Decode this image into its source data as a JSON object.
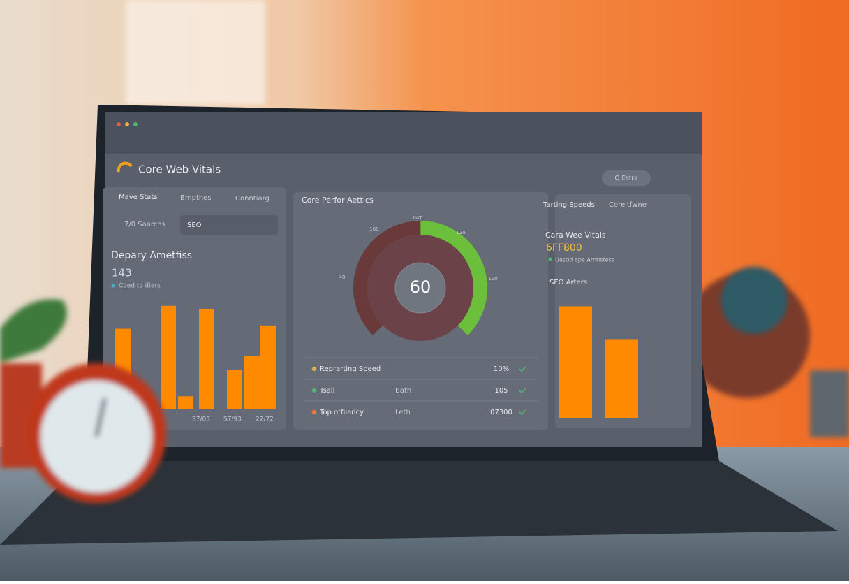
{
  "header": {
    "title": "Core Web Vitals",
    "search": "Q Estra"
  },
  "left": {
    "tabs": [
      "Mave Stats",
      "Bmpthes",
      "Conntiarg"
    ],
    "filter": "7/0 Saarchs",
    "select": "SEO",
    "title": "Depary Ametfiss",
    "metric": "143",
    "legend": "Coed to ifiers",
    "bars": [
      74,
      95,
      12,
      92,
      36,
      49,
      77
    ],
    "ylim": [
      0,
      100
    ],
    "xlabels": [
      "S7/03",
      "S7/93",
      "22/72"
    ],
    "color": "#ff8a00"
  },
  "middle": {
    "title": "Core Perfor Aettics",
    "gauge": {
      "value": 60,
      "lim": [
        0,
        100
      ],
      "labels": [
        "40",
        "100",
        "04T",
        "120",
        "120"
      ]
    },
    "rows": [
      {
        "name": "Reprarting Speed",
        "value": "10%",
        "color": "#e8b04a"
      },
      {
        "name": "Tsall",
        "extra": "Bath",
        "value": "105",
        "color": "#4cbb6c"
      },
      {
        "name": "Top otfiiancy",
        "extra": "Leth",
        "value": "07300",
        "color": "#ff7a2a"
      }
    ]
  },
  "right": {
    "tab": "Tarting Speeds",
    "menu": "Coreltfwne",
    "title": "Cara Wee Vitals",
    "code": "6FF800",
    "note": "Uastid ape Arntistess",
    "subtitle": "SEO Arters",
    "bars": [
      95,
      67
    ],
    "ylim": [
      0,
      100
    ],
    "color": "#ff8a00"
  }
}
